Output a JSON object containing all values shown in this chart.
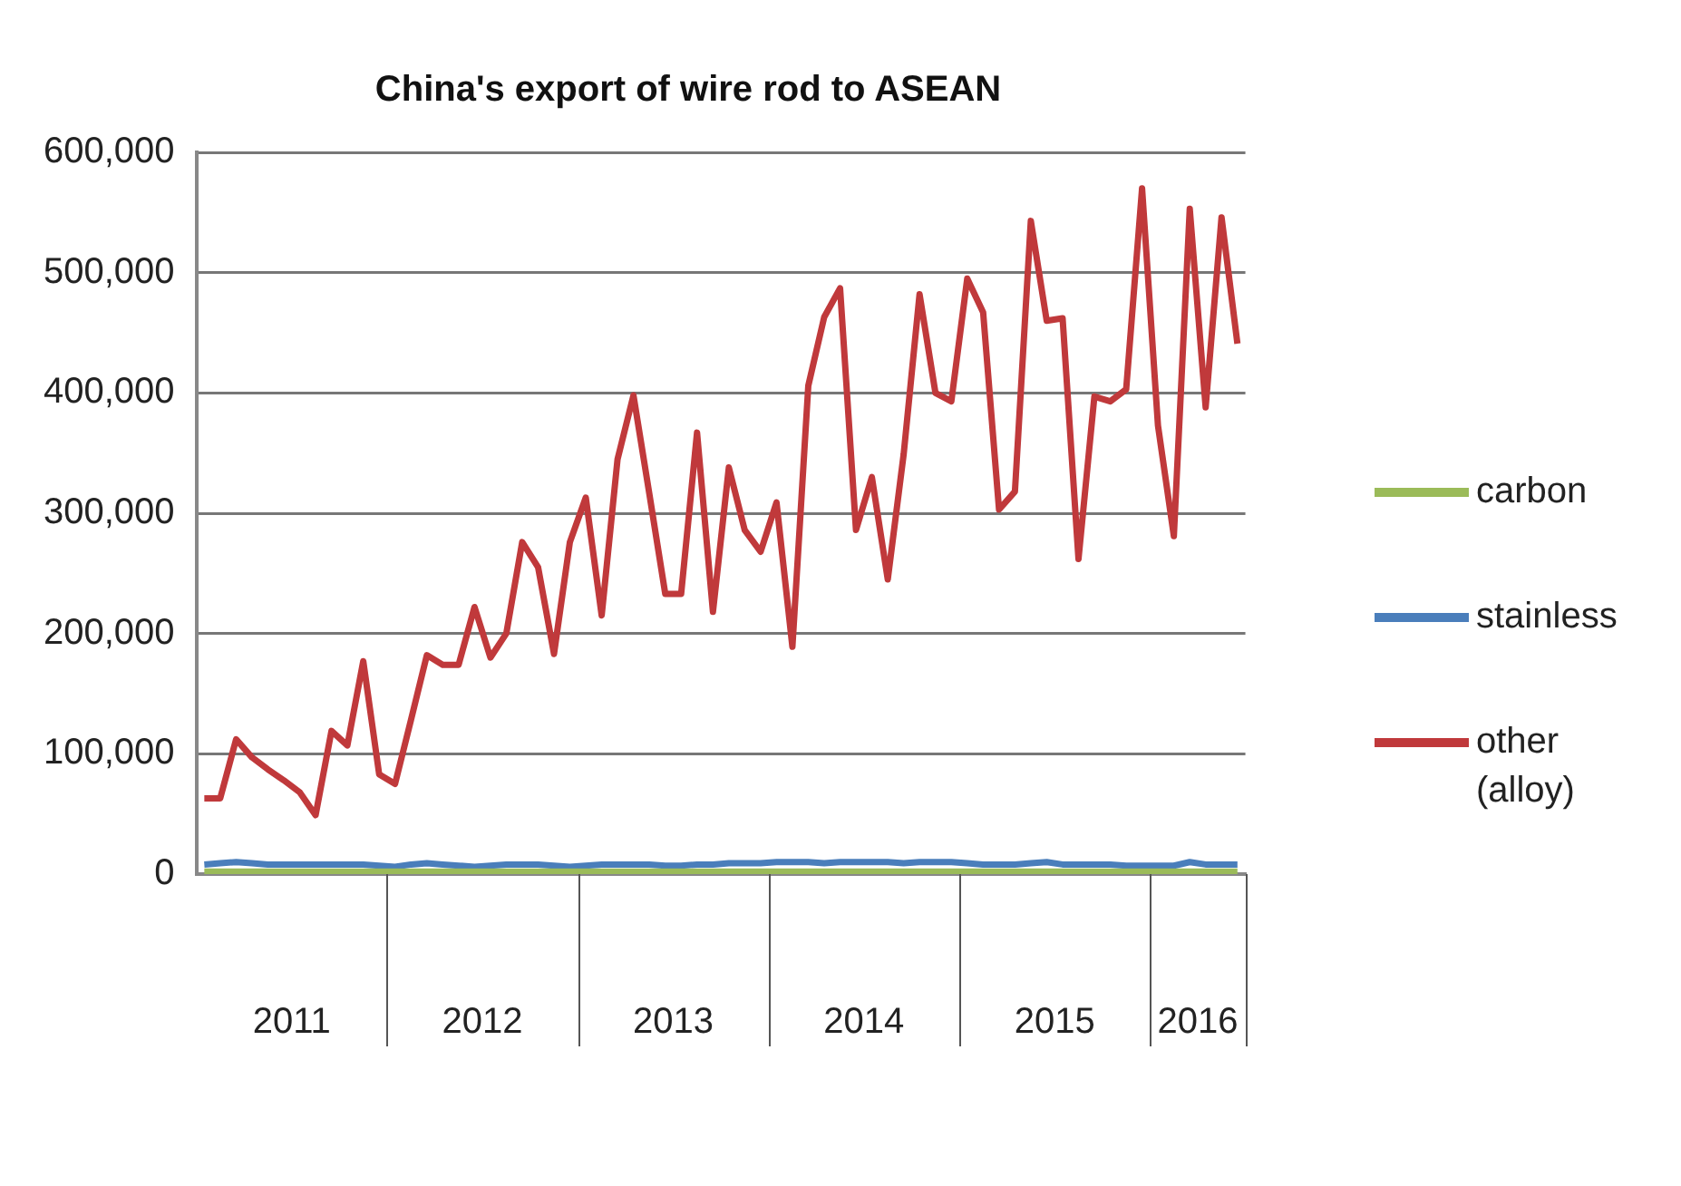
{
  "chart_data": {
    "type": "line",
    "title": "China's export of wire rod to ASEAN",
    "x": [
      "2011-01",
      "2011-02",
      "2011-03",
      "2011-04",
      "2011-05",
      "2011-06",
      "2011-07",
      "2011-08",
      "2011-09",
      "2011-10",
      "2011-11",
      "2011-12",
      "2012-01",
      "2012-02",
      "2012-03",
      "2012-04",
      "2012-05",
      "2012-06",
      "2012-07",
      "2012-08",
      "2012-09",
      "2012-10",
      "2012-11",
      "2012-12",
      "2013-01",
      "2013-02",
      "2013-03",
      "2013-04",
      "2013-05",
      "2013-06",
      "2013-07",
      "2013-08",
      "2013-09",
      "2013-10",
      "2013-11",
      "2013-12",
      "2014-01",
      "2014-02",
      "2014-03",
      "2014-04",
      "2014-05",
      "2014-06",
      "2014-07",
      "2014-08",
      "2014-09",
      "2014-10",
      "2014-11",
      "2014-12",
      "2015-01",
      "2015-02",
      "2015-03",
      "2015-04",
      "2015-05",
      "2015-06",
      "2015-07",
      "2015-08",
      "2015-09",
      "2015-10",
      "2015-11",
      "2015-12",
      "2016-01",
      "2016-02",
      "2016-03",
      "2016-04",
      "2016-05",
      "2016-06"
    ],
    "xlim": [
      "2010-12-16",
      "2016-06-16"
    ],
    "xticks": [
      {
        "value": "2011-06-16",
        "label": "2011"
      },
      {
        "value": "2012-06-16",
        "label": "2012"
      },
      {
        "value": "2013-06-16",
        "label": "2013"
      },
      {
        "value": "2014-06-16",
        "label": "2014"
      },
      {
        "value": "2015-06-16",
        "label": "2015"
      },
      {
        "value": "2016-03-16",
        "label": "2016"
      }
    ],
    "ylim": [
      0,
      600000
    ],
    "yticks": [
      {
        "value": 0,
        "label": "0"
      },
      {
        "value": 100000,
        "label": "100,000"
      },
      {
        "value": 200000,
        "label": "200,000"
      },
      {
        "value": 300000,
        "label": "300,000"
      },
      {
        "value": 400000,
        "label": "400,000"
      },
      {
        "value": 500000,
        "label": "500,000"
      },
      {
        "value": 600000,
        "label": "600,000"
      }
    ],
    "grid": "y",
    "legend": "right",
    "marker": "none",
    "line_style": "solid",
    "series": [
      {
        "name": "carbon",
        "color": "#9bbb59",
        "values": [
          2000,
          2000,
          2000,
          2000,
          2000,
          2000,
          2000,
          2000,
          2000,
          2000,
          2000,
          2000,
          2000,
          2000,
          2000,
          2000,
          2000,
          2000,
          2000,
          2000,
          2000,
          2000,
          2000,
          2000,
          2000,
          2000,
          2000,
          2000,
          2000,
          2000,
          2000,
          2000,
          2000,
          2000,
          2000,
          2000,
          2000,
          2000,
          2000,
          2000,
          2000,
          2000,
          2000,
          2000,
          2000,
          2000,
          2000,
          2000,
          2000,
          2000,
          2000,
          2000,
          2000,
          2000,
          2000,
          2000,
          2000,
          2000,
          2000,
          2000,
          2000,
          2000,
          2000,
          2000,
          2000,
          2000
        ]
      },
      {
        "name": "stainless",
        "color": "#4a7ebb",
        "values": [
          8000,
          9000,
          10000,
          9000,
          8000,
          8000,
          8000,
          8000,
          8000,
          8000,
          8000,
          7000,
          6000,
          8000,
          9000,
          8000,
          7000,
          6000,
          7000,
          8000,
          8000,
          8000,
          7000,
          6000,
          7000,
          8000,
          8000,
          8000,
          8000,
          7000,
          7000,
          8000,
          8000,
          9000,
          9000,
          9000,
          10000,
          10000,
          10000,
          9000,
          10000,
          10000,
          10000,
          10000,
          9000,
          10000,
          10000,
          10000,
          9000,
          8000,
          8000,
          8000,
          9000,
          10000,
          8000,
          8000,
          8000,
          8000,
          7000,
          7000,
          7000,
          7000,
          10000,
          8000,
          8000,
          8000
        ]
      },
      {
        "name": "other (alloy)",
        "color": "#c0393b",
        "values": [
          63000,
          63000,
          112000,
          97000,
          87000,
          78000,
          68000,
          49000,
          119000,
          107000,
          177000,
          83000,
          75000,
          128000,
          182000,
          174000,
          174000,
          222000,
          180000,
          200000,
          276000,
          255000,
          183000,
          276000,
          313000,
          215000,
          345000,
          398000,
          316000,
          233000,
          233000,
          367000,
          218000,
          338000,
          286000,
          268000,
          309000,
          189000,
          406000,
          463000,
          487000,
          286000,
          330000,
          245000,
          349000,
          482000,
          400000,
          393000,
          495000,
          467000,
          303000,
          318000,
          543000,
          460000,
          462000,
          262000,
          397000,
          393000,
          403000,
          570000,
          373000,
          281000,
          553000,
          388000,
          546000,
          441000
        ]
      }
    ]
  }
}
